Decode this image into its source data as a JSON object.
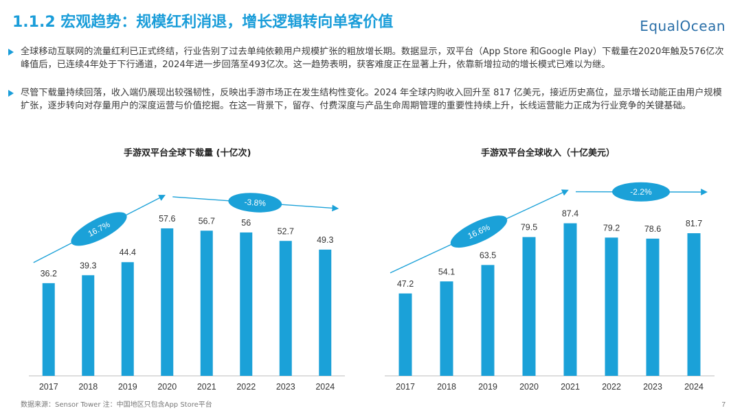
{
  "header": {
    "title": "1.1.2 宏观趋势：规模红利消退，增长逻辑转向单客价值",
    "logo": "EqualOcean"
  },
  "bullets": [
    "全球移动互联网的流量红利已正式终结，行业告别了过去单纯依赖用户规模扩张的粗放增长期。数据显示，双平台（App Store 和Google Play）下载量在2020年触及576亿次峰值后，已连续4年处于下行通道，2024年进一步回落至493亿次。这一趋势表明，获客难度正在显著上升，依靠新增拉动的增长模式已难以为继。",
    "尽管下载量持续回落，收入端仍展现出较强韧性，反映出手游市场正在发生结构性变化。2024 年全球内购收入回升至 817 亿美元，接近历史高位，显示增长动能正由用户规模扩张，逐步转向对存量用户的深度运营与价值挖掘。在这一背景下，留存、付费深度与产品生命周期管理的重要性持续上升，长线运营能力正成为行业竞争的关键基础。"
  ],
  "footer": {
    "source": "数据来源：Sensor Tower 注：中国地区只包含App Store平台",
    "page": "7"
  },
  "colors": {
    "bar": "#1ba1d8",
    "accent": "#1a9dd9",
    "arrow": "#1ba1d8"
  },
  "chart_data": [
    {
      "type": "bar",
      "title": "手游双平台全球下载量 (十亿次)",
      "categories": [
        "2017",
        "2018",
        "2019",
        "2020",
        "2021",
        "2022",
        "2023",
        "2024"
      ],
      "values": [
        36.2,
        39.3,
        44.4,
        57.6,
        56.7,
        56,
        52.7,
        49.3
      ],
      "annotations": [
        {
          "label": "16.7%",
          "from": "2017",
          "to": "2020",
          "direction": "up"
        },
        {
          "label": "-3.8%",
          "from": "2020",
          "to": "2024",
          "direction": "down"
        }
      ],
      "grid": false,
      "legend": "none"
    },
    {
      "type": "bar",
      "title": "手游双平台全球收入（十亿美元）",
      "categories": [
        "2017",
        "2018",
        "2019",
        "2020",
        "2021",
        "2022",
        "2023",
        "2024"
      ],
      "values": [
        47.2,
        54.1,
        63.5,
        79.5,
        87.4,
        79.2,
        78.6,
        81.7
      ],
      "annotations": [
        {
          "label": "16.6%",
          "from": "2017",
          "to": "2021",
          "direction": "up"
        },
        {
          "label": "-2.2%",
          "from": "2021",
          "to": "2024",
          "direction": "down"
        }
      ],
      "grid": false,
      "legend": "none"
    }
  ]
}
